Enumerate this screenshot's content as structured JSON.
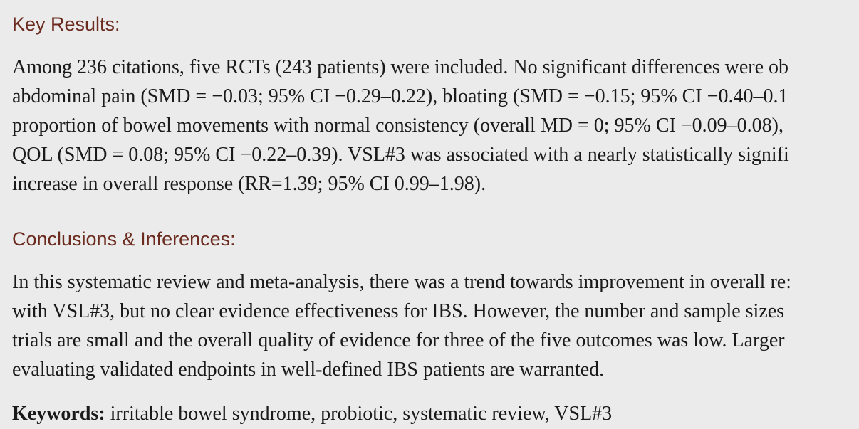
{
  "key_results": {
    "heading": "Key Results:",
    "lines": [
      "Among 236 citations, five RCTs (243 patients) were included. No significant differences were ob",
      "abdominal pain (SMD = −0.03; 95% CI −0.29–0.22), bloating (SMD = −0.15; 95% CI −0.40–0.1",
      "proportion of bowel movements with normal consistency (overall MD = 0; 95% CI −0.09–0.08),",
      "QOL (SMD = 0.08; 95% CI −0.22–0.39). VSL#3 was associated with a nearly statistically signifi",
      "increase in overall response (RR=1.39; 95% CI 0.99–1.98)."
    ]
  },
  "conclusions": {
    "heading": "Conclusions & Inferences:",
    "lines": [
      "In this systematic review and meta-analysis, there was a trend towards improvement in overall re:",
      "with VSL#3, but no clear evidence effectiveness for IBS. However, the number and sample sizes",
      "trials are small and the overall quality of evidence for three of the five outcomes was low. Larger",
      "evaluating validated endpoints in well-defined IBS patients are warranted."
    ]
  },
  "keywords": {
    "label": "Keywords:",
    "text": " irritable bowel syndrome, probiotic, systematic review, VSL#3"
  }
}
